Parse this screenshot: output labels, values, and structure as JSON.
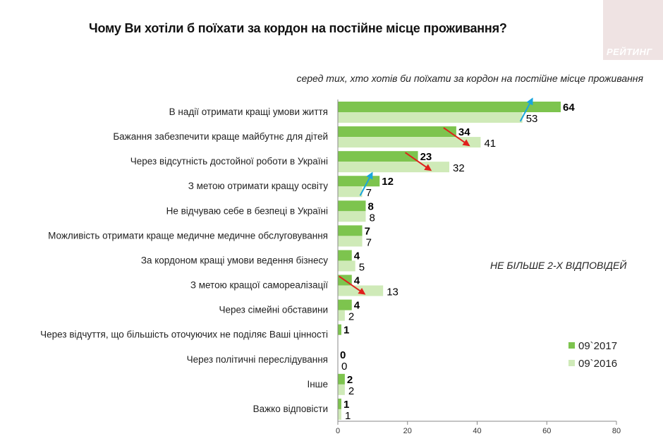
{
  "header": {
    "title": "Чому Ви хотіли б поїхати за кордон на постійне місце проживання?",
    "subtitle": "серед тих, хто хотів би поїхати за кордон на постійне місце проживання",
    "logo_text": "РЕЙТИНГ",
    "note": "НЕ БІЛЬШЕ 2-Х ВІДПОВІДЕЙ"
  },
  "chart_data": {
    "type": "bar",
    "orientation": "horizontal",
    "categories": [
      "В надії отримати кращі умови життя",
      "Бажання забезпечити краще майбутнє для дітей",
      "Через відсутність достойної роботи в Україні",
      "З метою отримати кращу освіту",
      "Не відчуваю себе в безпеці в Україні",
      "Можливість отримати краще медичне медичне обслуговування",
      "За кордоном кращі умови ведення бізнесу",
      "З метою кращої самореалізації",
      "Через сімейні обставини",
      "Через відчуття, що більшість оточуючих не поділяє Ваші цінності",
      "Через політичні переслідування",
      "Інше",
      "Важко відповісти"
    ],
    "series": [
      {
        "name": "09`2017",
        "color": "#7dc44e",
        "values": [
          64,
          34,
          23,
          12,
          8,
          7,
          4,
          4,
          4,
          1,
          0,
          2,
          1
        ]
      },
      {
        "name": "09`2016",
        "color": "#cfeab8",
        "values": [
          53,
          41,
          32,
          7,
          8,
          7,
          5,
          13,
          2,
          null,
          0,
          2,
          1
        ]
      }
    ],
    "trend_arrows": [
      {
        "category_index": 0,
        "direction": "up",
        "color": "#1aa6dc"
      },
      {
        "category_index": 1,
        "direction": "down",
        "color": "#e0201c"
      },
      {
        "category_index": 2,
        "direction": "down",
        "color": "#e0201c"
      },
      {
        "category_index": 3,
        "direction": "up",
        "color": "#1aa6dc"
      },
      {
        "category_index": 7,
        "direction": "down",
        "color": "#e0201c"
      }
    ],
    "xlim": [
      0,
      80
    ],
    "xticks": [
      0,
      20,
      40,
      60,
      80
    ],
    "grid": false,
    "legend_position": "bottom-right"
  }
}
